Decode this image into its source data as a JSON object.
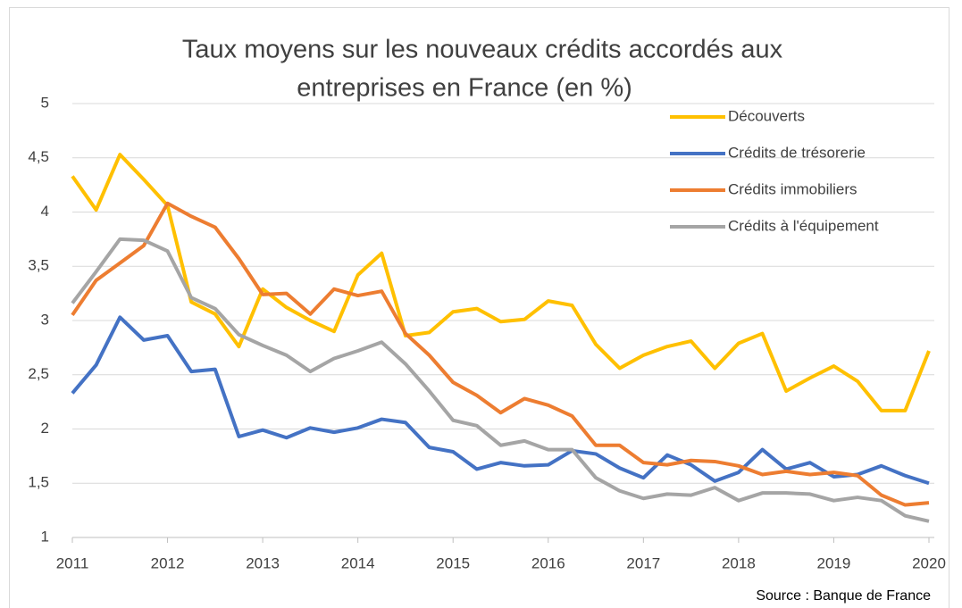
{
  "chart_data": {
    "type": "line",
    "title": [
      "Taux moyens sur les nouveaux crédits accordés aux",
      "entreprises en France (en %)"
    ],
    "source": "Source : Banque de France",
    "x": [
      2011,
      2011.25,
      2011.5,
      2011.75,
      2012,
      2012.25,
      2012.5,
      2012.75,
      2013,
      2013.25,
      2013.5,
      2013.75,
      2014,
      2014.25,
      2014.5,
      2014.75,
      2015,
      2015.25,
      2015.5,
      2015.75,
      2016,
      2016.25,
      2016.5,
      2016.75,
      2017,
      2017.25,
      2017.5,
      2017.75,
      2018,
      2018.25,
      2018.5,
      2018.75,
      2019,
      2019.25,
      2019.5,
      2019.75,
      2020
    ],
    "series": [
      {
        "name": "Découverts",
        "color": "#ffc000",
        "values": [
          4.33,
          4.02,
          4.53,
          4.3,
          4.06,
          3.17,
          3.06,
          2.76,
          3.29,
          3.12,
          3.0,
          2.9,
          3.42,
          3.62,
          2.86,
          2.89,
          3.08,
          3.11,
          2.99,
          3.01,
          3.18,
          3.14,
          2.78,
          2.56,
          2.68,
          2.76,
          2.81,
          2.56,
          2.79,
          2.88,
          2.35,
          2.47,
          2.58,
          2.44,
          2.17,
          2.17,
          2.72
        ]
      },
      {
        "name": "Crédits de trésorerie",
        "color": "#4472c4",
        "values": [
          2.33,
          2.59,
          3.03,
          2.82,
          2.86,
          2.53,
          2.55,
          1.93,
          1.99,
          1.92,
          2.01,
          1.97,
          2.01,
          2.09,
          2.06,
          1.83,
          1.79,
          1.63,
          1.69,
          1.66,
          1.67,
          1.8,
          1.77,
          1.64,
          1.55,
          1.76,
          1.67,
          1.52,
          1.6,
          1.81,
          1.63,
          1.69,
          1.56,
          1.58,
          1.66,
          1.57,
          1.5
        ]
      },
      {
        "name": "Crédits immobiliers",
        "color": "#ed7d31",
        "values": [
          3.05,
          3.37,
          3.53,
          3.69,
          4.08,
          3.96,
          3.86,
          3.57,
          3.24,
          3.25,
          3.06,
          3.29,
          3.23,
          3.27,
          2.88,
          2.68,
          2.43,
          2.31,
          2.15,
          2.28,
          2.22,
          2.12,
          1.85,
          1.85,
          1.69,
          1.67,
          1.71,
          1.7,
          1.66,
          1.58,
          1.61,
          1.58,
          1.6,
          1.57,
          1.39,
          1.3,
          1.32
        ]
      },
      {
        "name": "Crédits à l'équipement",
        "color": "#a5a5a5",
        "values": [
          3.16,
          3.45,
          3.75,
          3.74,
          3.64,
          3.21,
          3.11,
          2.87,
          2.77,
          2.68,
          2.53,
          2.65,
          2.72,
          2.8,
          2.6,
          2.35,
          2.08,
          2.03,
          1.85,
          1.89,
          1.81,
          1.81,
          1.55,
          1.43,
          1.36,
          1.4,
          1.39,
          1.46,
          1.34,
          1.41,
          1.41,
          1.4,
          1.34,
          1.37,
          1.34,
          1.2,
          1.15
        ]
      }
    ],
    "xlim": [
      2011,
      2020
    ],
    "xticks": [
      2011,
      2012,
      2013,
      2014,
      2015,
      2016,
      2017,
      2018,
      2019,
      2020
    ],
    "ylim": [
      1,
      5
    ],
    "yticks": [
      1,
      {
        "value": 1.5,
        "label": "1,5"
      },
      2,
      {
        "value": 2.5,
        "label": "2,5"
      },
      3,
      {
        "value": 3.5,
        "label": "3,5"
      },
      4,
      {
        "value": 4.5,
        "label": "4,5"
      },
      5
    ],
    "grid": true,
    "legend": "upper right"
  }
}
